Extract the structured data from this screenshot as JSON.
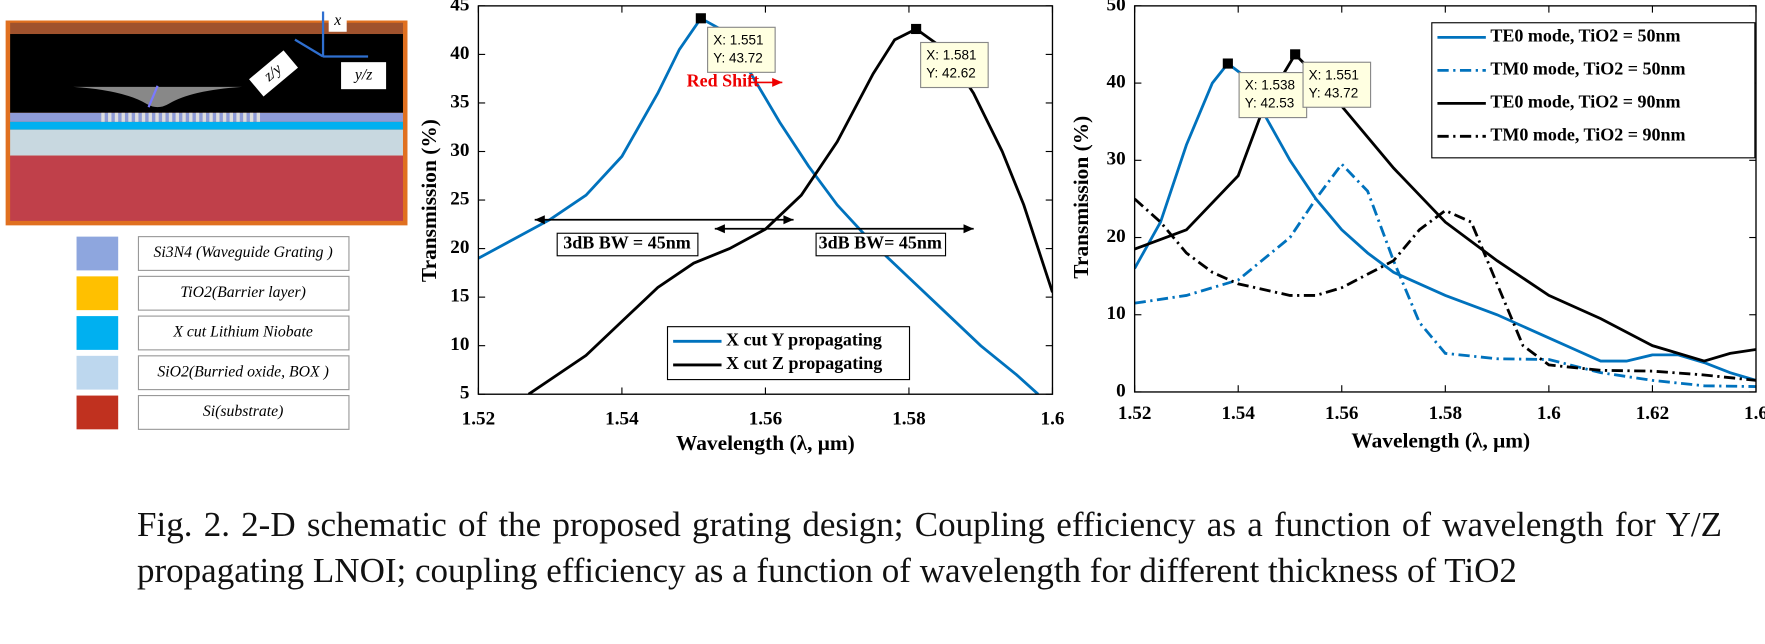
{
  "schematic": {
    "axis_labels": [
      "x",
      "y/z",
      "z/y"
    ],
    "legend": [
      {
        "label": "Si3N4 (Waveguide Grating )",
        "color": "#8ea6de"
      },
      {
        "label": "TiO2(Barrier layer)",
        "color": "#ffc000"
      },
      {
        "label": "X cut Lithium Niobate",
        "color": "#00b0f0"
      },
      {
        "label": "SiO2(Burried oxide, BOX )",
        "color": "#bdd7ee"
      },
      {
        "label": "Si(substrate)",
        "color": "#c0311f"
      }
    ]
  },
  "chart_data": [
    {
      "type": "line",
      "xlabel": "Wavelength (λ, μm)",
      "ylabel": "Transmission (%)",
      "xlim": [
        1.52,
        1.6
      ],
      "xticks": [
        1.52,
        1.54,
        1.56,
        1.58,
        1.6
      ],
      "ylim": [
        5,
        45
      ],
      "yticks": [
        5,
        10,
        15,
        20,
        25,
        30,
        35,
        40,
        45
      ],
      "grid": false,
      "legend": "lower center",
      "series": [
        {
          "name": "X cut Y propagating",
          "color": "#0072bd",
          "dash": "solid",
          "x": [
            1.52,
            1.525,
            1.53,
            1.535,
            1.54,
            1.545,
            1.548,
            1.551,
            1.554,
            1.558,
            1.562,
            1.566,
            1.57,
            1.575,
            1.58,
            1.585,
            1.59,
            1.595,
            1.598
          ],
          "values": [
            19,
            21,
            23,
            25.5,
            29.5,
            36,
            40.5,
            43.72,
            42.5,
            38,
            33,
            28.5,
            24.5,
            20.5,
            17,
            13.5,
            10,
            7,
            5
          ]
        },
        {
          "name": "X cut Z propagating",
          "color": "#000000",
          "dash": "solid",
          "x": [
            1.527,
            1.535,
            1.54,
            1.545,
            1.55,
            1.555,
            1.56,
            1.565,
            1.57,
            1.575,
            1.578,
            1.581,
            1.585,
            1.589,
            1.593,
            1.596,
            1.598,
            1.6
          ],
          "values": [
            5,
            9,
            12.5,
            16,
            18.5,
            20,
            22,
            25.5,
            31,
            38,
            41.5,
            42.62,
            40.5,
            36,
            30,
            24.5,
            20,
            15.5
          ]
        }
      ],
      "datatips": [
        {
          "x": {
            "value": 1.551,
            "label": "X: 1.551"
          },
          "y": {
            "value": 43.72,
            "label": "Y: 43.72"
          }
        },
        {
          "x": {
            "value": 1.581,
            "label": "X: 1.581"
          },
          "y": {
            "value": 42.62,
            "label": "Y: 42.62"
          }
        }
      ],
      "annotations": [
        "Red Shift",
        "3dB BW = 45nm",
        "3dB BW= 45nm"
      ]
    },
    {
      "type": "line",
      "xlabel": "Wavelength (λ, μm)",
      "ylabel": "Transmission (%)",
      "xlim": [
        1.52,
        1.64
      ],
      "xticks": [
        1.52,
        1.54,
        1.56,
        1.58,
        1.6,
        1.62,
        {
          "value": 1.64,
          "label": "1.6"
        }
      ],
      "ylim": [
        0,
        50
      ],
      "yticks": [
        0,
        10,
        20,
        30,
        40,
        50
      ],
      "grid": false,
      "legend": "upper right",
      "series": [
        {
          "name": "TE0 mode, TiO2 = 50nm",
          "color": "#0072bd",
          "dash": "solid",
          "x": [
            1.52,
            1.525,
            1.53,
            1.535,
            1.538,
            1.541,
            1.545,
            1.55,
            1.555,
            1.56,
            1.565,
            1.57,
            1.58,
            1.59,
            1.6,
            1.605,
            1.61,
            1.615,
            1.62,
            1.625,
            1.63,
            1.635,
            1.64
          ],
          "values": [
            16,
            22,
            32,
            40,
            42.53,
            41,
            36,
            30,
            25,
            21,
            18,
            15.5,
            12.5,
            10,
            7,
            5.5,
            4,
            4,
            4.8,
            4.8,
            3.8,
            2.5,
            1.5
          ]
        },
        {
          "name": "TM0 mode, TiO2 = 50nm",
          "color": "#0072bd",
          "dash": "dashdot",
          "x": [
            1.52,
            1.53,
            1.54,
            1.55,
            1.555,
            1.56,
            1.565,
            1.57,
            1.575,
            1.58,
            1.59,
            1.6,
            1.61,
            1.62,
            1.63,
            1.64
          ],
          "values": [
            11.5,
            12.5,
            14.5,
            20,
            25,
            29.5,
            26,
            17,
            9,
            5,
            4.3,
            4.2,
            2.5,
            1.5,
            0.8,
            0.7
          ]
        },
        {
          "name": "TE0 mode, TiO2 = 90nm",
          "color": "#000000",
          "dash": "solid",
          "x": [
            1.52,
            1.53,
            1.54,
            1.545,
            1.551,
            1.555,
            1.56,
            1.57,
            1.58,
            1.59,
            1.6,
            1.61,
            1.62,
            1.63,
            1.635,
            1.64
          ],
          "values": [
            18.5,
            21,
            28,
            37,
            43.72,
            41,
            37,
            29,
            22,
            17,
            12.5,
            9.5,
            6,
            4,
            5,
            5.5
          ]
        },
        {
          "name": "TM0 mode, TiO2 = 90nm",
          "color": "#000000",
          "dash": "dashdot",
          "x": [
            1.52,
            1.525,
            1.53,
            1.535,
            1.54,
            1.55,
            1.555,
            1.56,
            1.57,
            1.575,
            1.58,
            1.585,
            1.59,
            1.595,
            1.6,
            1.61,
            1.62,
            1.63,
            1.64
          ],
          "values": [
            25,
            22,
            18,
            15.5,
            14,
            12.5,
            12.5,
            13.5,
            17,
            21,
            23.5,
            22,
            14,
            6,
            3.5,
            2.8,
            2.7,
            2.2,
            1.5
          ]
        }
      ],
      "datatips": [
        {
          "x": {
            "value": 1.538,
            "label": "X: 1.538"
          },
          "y": {
            "value": 42.53,
            "label": "Y: 42.53"
          }
        },
        {
          "x": {
            "value": 1.551,
            "label": "X: 1.551"
          },
          "y": {
            "value": 43.72,
            "label": "Y: 43.72"
          }
        }
      ]
    }
  ],
  "caption": "Fig. 2. 2-D schematic of the proposed grating design; Coupling efficiency as a function of wavelength for Y/Z propagating LNOI; coupling efficiency as a function of wavelength for different thickness of TiO2"
}
